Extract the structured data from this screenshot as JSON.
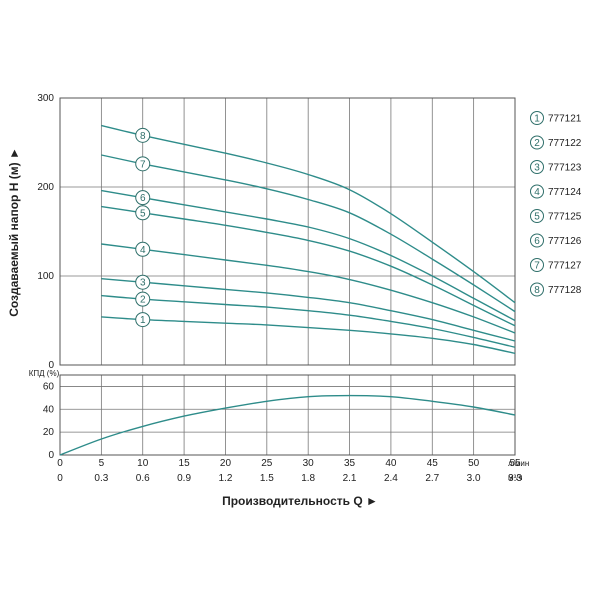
{
  "chart_data": [
    {
      "type": "line",
      "ylabel": "Создаваемый напор Н (м)",
      "ylim": [
        0,
        300
      ],
      "y_ticks": [
        0,
        100,
        200,
        300
      ],
      "xlim_lpm": [
        0,
        55
      ],
      "grid": true,
      "legend_placement": "right",
      "x": [
        5,
        10,
        15,
        20,
        25,
        30,
        35,
        40,
        45,
        50,
        55
      ],
      "series": [
        {
          "name": "777121",
          "marker": "1",
          "values": [
            54,
            51,
            49,
            47,
            45,
            42,
            39,
            35,
            30,
            23,
            13
          ]
        },
        {
          "name": "777122",
          "marker": "2",
          "values": [
            78,
            74,
            71,
            68,
            65,
            61,
            56,
            49,
            41,
            31,
            20
          ]
        },
        {
          "name": "777123",
          "marker": "3",
          "values": [
            97,
            93,
            89,
            85,
            81,
            76,
            70,
            61,
            51,
            39,
            27
          ]
        },
        {
          "name": "777124",
          "marker": "4",
          "values": [
            136,
            130,
            124,
            118,
            112,
            105,
            96,
            84,
            70,
            54,
            36
          ]
        },
        {
          "name": "777125",
          "marker": "5",
          "values": [
            178,
            171,
            164,
            157,
            149,
            140,
            128,
            111,
            90,
            67,
            44
          ]
        },
        {
          "name": "777126",
          "marker": "6",
          "values": [
            196,
            188,
            180,
            172,
            164,
            155,
            142,
            123,
            100,
            75,
            50
          ]
        },
        {
          "name": "777127",
          "marker": "7",
          "values": [
            236,
            226,
            217,
            208,
            198,
            186,
            171,
            147,
            119,
            90,
            60
          ]
        },
        {
          "name": "777128",
          "marker": "8",
          "values": [
            269,
            258,
            248,
            238,
            227,
            214,
            197,
            170,
            138,
            105,
            70
          ]
        }
      ]
    },
    {
      "type": "line",
      "ylabel": "КПД (%)",
      "ylim": [
        0,
        70
      ],
      "y_ticks": [
        0,
        20,
        40,
        60
      ],
      "xlim_lpm": [
        0,
        55
      ],
      "grid": true,
      "x": [
        0,
        5,
        10,
        15,
        20,
        25,
        30,
        35,
        40,
        45,
        50,
        55
      ],
      "series": [
        {
          "values": [
            0,
            14,
            25,
            34,
            41,
            47,
            51,
            52,
            51,
            47,
            42,
            35
          ]
        }
      ]
    }
  ],
  "x_axis": {
    "primary_ticks": [
      "0",
      "5",
      "10",
      "15",
      "20",
      "25",
      "30",
      "35",
      "40",
      "45",
      "50",
      "55"
    ],
    "primary_unit": "л/мин",
    "secondary_ticks": [
      "0",
      "0.3",
      "0.6",
      "0.9",
      "1.2",
      "1.5",
      "1.8",
      "2.1",
      "2.4",
      "2.7",
      "3.0",
      "3.3"
    ],
    "secondary_unit": "м³/ч",
    "title": "Производительность Q ►"
  },
  "top_ylabel_display": "Создаваемый напор Н (м) ►",
  "bottom_ylabel_display": "КПД (%)",
  "colors": {
    "curve": "#2e8c8a",
    "marker": "#2f6f6a"
  }
}
